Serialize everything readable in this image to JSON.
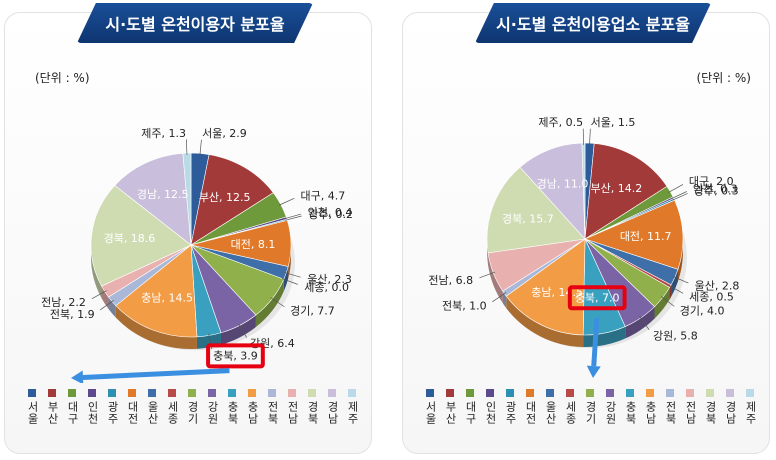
{
  "chart_data": [
    {
      "type": "pie",
      "title": "시·도별 온천이용자 분포율",
      "unit": "(단위 : %)",
      "categories": [
        "서울",
        "부산",
        "대구",
        "인천",
        "광주",
        "대전",
        "울산",
        "세종",
        "경기",
        "강원",
        "충북",
        "충남",
        "전북",
        "전남",
        "경북",
        "경남",
        "제주"
      ],
      "values": [
        2.9,
        12.5,
        4.7,
        0.4,
        0.2,
        8.1,
        2.3,
        0.0,
        7.7,
        6.4,
        3.9,
        14.5,
        1.9,
        2.2,
        18.6,
        12.5,
        1.3
      ],
      "labels": [
        "서울, 2.9",
        "부산, 12.5",
        "대구, 4.7",
        "인천, 0.4",
        "광주, 0.2",
        "대전, 8.1",
        "울산, 2.3",
        "세종, 0.0",
        "경기, 7.7",
        "강원, 6.4",
        "충북, 3.9",
        "충남, 14.5",
        "전북, 1.9",
        "전남, 2.2",
        "경북, 18.6",
        "경남, 12.5",
        "제주, 1.3"
      ],
      "highlight": "충북",
      "legend_placement": "bottom"
    },
    {
      "type": "pie",
      "title": "시·도별 온천이용업소 분포율",
      "unit": "(단위 : %)",
      "categories": [
        "서울",
        "부산",
        "대구",
        "인천",
        "광주",
        "대전",
        "울산",
        "세종",
        "경기",
        "강원",
        "충북",
        "충남",
        "전북",
        "전남",
        "경북",
        "경남",
        "제주"
      ],
      "values": [
        1.5,
        14.2,
        2.0,
        0.3,
        0.3,
        11.7,
        2.8,
        0.5,
        4.0,
        5.8,
        7.0,
        14.5,
        1.0,
        6.8,
        15.7,
        11.0,
        0.5
      ],
      "labels": [
        "서울, 1.5",
        "부산, 14.2",
        "대구, 2.0",
        "인천, 0.3",
        "광주, 0.3",
        "대전, 11.7",
        "울산, 2.8",
        "세종, 0.5",
        "경기, 4.0",
        "강원, 5.8",
        "충북, 7.0",
        "충남, 14.5",
        "전북, 1.0",
        "전남, 6.8",
        "경북, 15.7",
        "경남, 11.0",
        "제주, 0.5"
      ],
      "highlight": "충북",
      "legend_placement": "bottom"
    }
  ],
  "colors": [
    "#2e5b9a",
    "#a33a3a",
    "#6f9a3c",
    "#5b4a8c",
    "#2f8fb0",
    "#e07a2a",
    "#3f6fa8",
    "#b84a48",
    "#8fb04a",
    "#7a64a6",
    "#3aa0bf",
    "#f39c46",
    "#a9b8d8",
    "#e8b0ae",
    "#cfdcb2",
    "#c9bedb",
    "#b9dbe8"
  ],
  "highlight_color": "#e60012",
  "arrow_color": "#3a8fe0"
}
